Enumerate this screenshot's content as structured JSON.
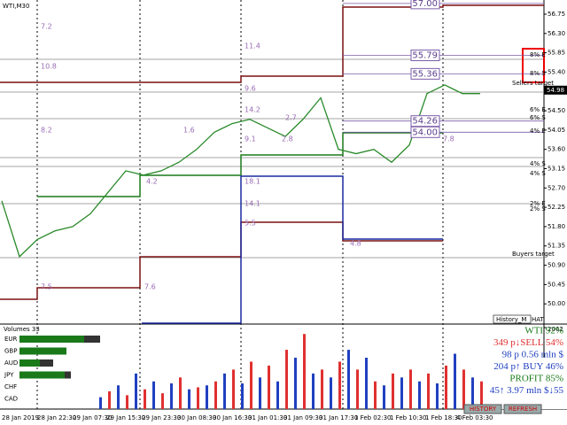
{
  "window": {
    "symbol": "WTI,M30",
    "history_tab": "History_M",
    "corner": "HAT"
  },
  "price_axis": {
    "ylim": [
      49.55,
      57.08
    ],
    "ticks": [
      {
        "value": 56.75,
        "label": "56.75"
      },
      {
        "value": 56.3,
        "label": "56.30"
      },
      {
        "value": 55.85,
        "label": "55.85"
      },
      {
        "value": 55.4,
        "label": "55.40"
      },
      {
        "value": 54.5,
        "label": "54.50"
      },
      {
        "value": 54.05,
        "label": "54.05"
      },
      {
        "value": 53.6,
        "label": "53.60"
      },
      {
        "value": 53.15,
        "label": "53.15"
      },
      {
        "value": 52.7,
        "label": "52.70"
      },
      {
        "value": 52.25,
        "label": "52.25"
      },
      {
        "value": 51.8,
        "label": "51.80"
      },
      {
        "value": 51.35,
        "label": "51.35"
      },
      {
        "value": 50.9,
        "label": "50.90"
      },
      {
        "value": 50.45,
        "label": "50.45"
      },
      {
        "value": 50,
        "label": "50.00"
      }
    ],
    "current": {
      "value": 54.98,
      "label": "54.98"
    }
  },
  "price": {
    "close": [
      52.4,
      51.1,
      51.5,
      51.7,
      51.8,
      52.1,
      52.6,
      53.1,
      53.0,
      53.1,
      53.3,
      53.6,
      54.0,
      54.2,
      54.3,
      54.1,
      53.9,
      54.3,
      54.8,
      53.6,
      53.5,
      53.6,
      53.3,
      53.7,
      54.9,
      55.1,
      54.9,
      54.9
    ]
  },
  "levels": [
    {
      "value": 57,
      "label": "57.00"
    },
    {
      "value": 55.79,
      "label": "55.79"
    },
    {
      "value": 55.36,
      "label": "55.36"
    },
    {
      "value": 54.26,
      "label": "54.26"
    },
    {
      "value": 54,
      "label": "54.00"
    }
  ],
  "annotations": [
    "7.2",
    "10.8",
    "8.2",
    "11.4",
    "9.6",
    "14.2",
    "1.6",
    "9.1",
    "2.7",
    "2.8",
    "18.1",
    "14.1",
    "5.5",
    "7.5",
    "7.6",
    "4.8",
    "4.2",
    "7.8"
  ],
  "targets": [
    "8% E",
    "8% S",
    "Sellers target",
    "6% E",
    "6% S",
    "4% E",
    "4% S",
    "4% S",
    "2% E",
    "2% S",
    "Buyers target"
  ],
  "time_axis": {
    "labels": [
      "28 Jan 2019",
      "28 Jan 22:30",
      "29 Jan 07:30",
      "29 Jan 15:30",
      "29 Jan 23:30",
      "30 Jan 08:30",
      "30 Jan 16:30",
      "31 Jan 01:30",
      "31 Jan 09:30",
      "31 Jan 17:30",
      "1 Feb 02:30",
      "1 Feb 10:30",
      "1 Feb 18:30",
      "4 Feb 03:30"
    ]
  },
  "volumes": {
    "title": "Volumes 33",
    "max": {
      "value": 2062,
      "label": "2062"
    },
    "values": [
      300,
      450,
      600,
      350,
      900,
      500,
      700,
      400,
      650,
      800,
      500,
      550,
      600,
      700,
      900,
      1000,
      650,
      1200,
      800,
      1100,
      700,
      1500,
      1300,
      1900,
      900,
      1000,
      800,
      1200,
      1500,
      1000,
      1300,
      700,
      600,
      900,
      800,
      1000,
      700,
      900,
      650,
      1100,
      1400,
      1000,
      800,
      700
    ]
  },
  "currencies": {
    "names": [
      "EUR",
      "GBP",
      "AUD",
      "JPY",
      "CHF",
      "CAD"
    ],
    "strength": [
      73,
      53,
      23,
      51,
      0,
      0
    ],
    "weakness": [
      18,
      0,
      15,
      7,
      0,
      0
    ]
  },
  "panel": {
    "lines": [
      "WTI 92%",
      "349 p↓SELL 54%",
      "98 p  0.56 mln $",
      "204 p↑ BUY 46%",
      "PROFIT 85%",
      "45↑  3.97 mln $↓55"
    ],
    "buttons": [
      "HISTORY",
      "REFRESH"
    ]
  }
}
